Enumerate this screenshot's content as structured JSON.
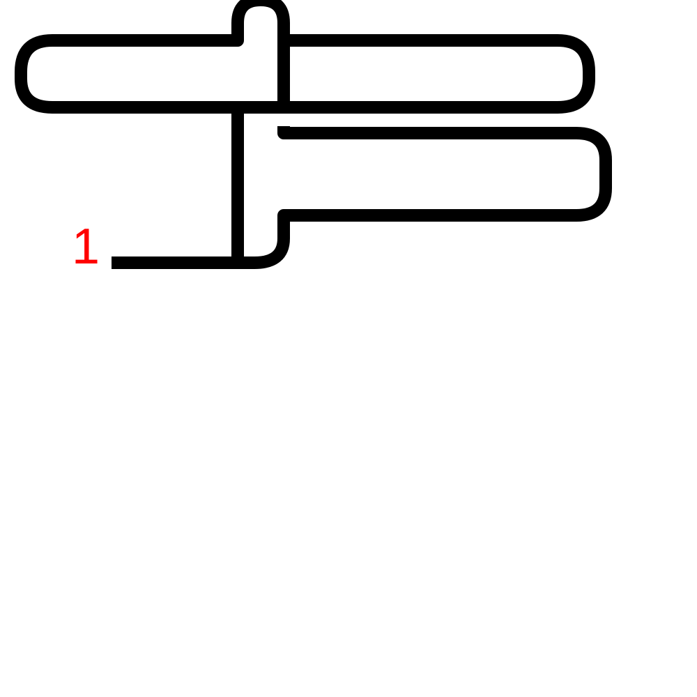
{
  "diagram": {
    "start_label": "1",
    "colors": {
      "background": "#ffffff",
      "line": "#000000",
      "label": "#ff0000"
    }
  }
}
